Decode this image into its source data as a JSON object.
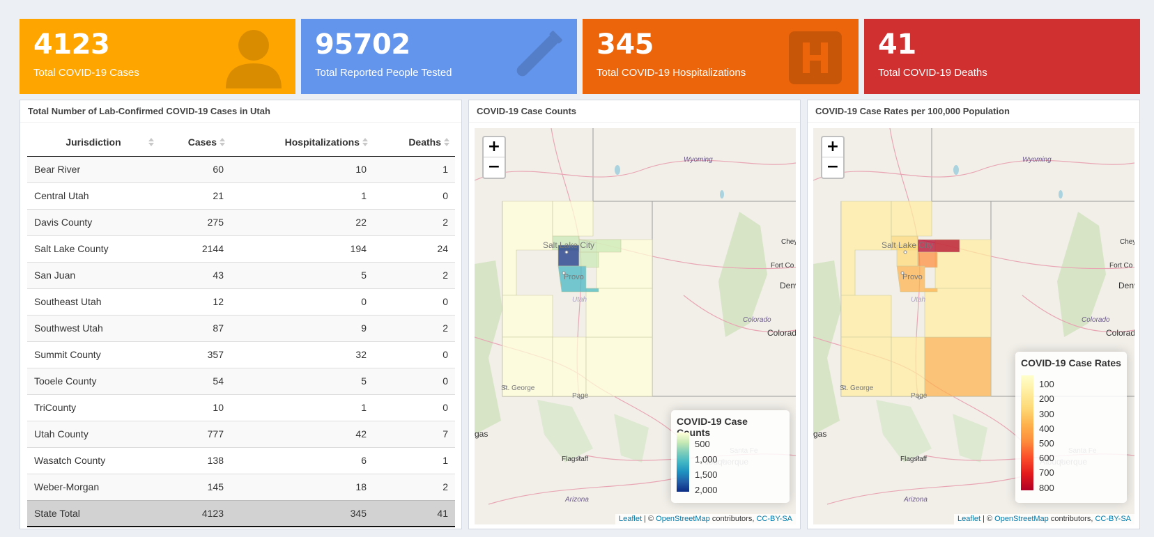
{
  "value_boxes": {
    "cases": {
      "value": "4123",
      "caption": "Total COVID-19 Cases",
      "icon": "user-icon",
      "color": "#ffa500"
    },
    "tested": {
      "value": "95702",
      "caption": "Total Reported People Tested",
      "icon": "vial-icon",
      "color": "#6495ed"
    },
    "hosp": {
      "value": "345",
      "caption": "Total COVID-19 Hospitalizations",
      "icon": "hospital-icon",
      "color": "#ec650a"
    },
    "deaths": {
      "value": "41",
      "caption": "Total COVID-19 Deaths",
      "color": "#d0302f"
    }
  },
  "table_panel": {
    "title": "Total Number of Lab-Confirmed COVID-19 Cases in Utah",
    "columns": [
      "Jurisdiction",
      "Cases",
      "Hospitalizations",
      "Deaths"
    ],
    "rows": [
      [
        "Bear River",
        "60",
        "10",
        "1"
      ],
      [
        "Central Utah",
        "21",
        "1",
        "0"
      ],
      [
        "Davis County",
        "275",
        "22",
        "2"
      ],
      [
        "Salt Lake County",
        "2144",
        "194",
        "24"
      ],
      [
        "San Juan",
        "43",
        "5",
        "2"
      ],
      [
        "Southeast Utah",
        "12",
        "0",
        "0"
      ],
      [
        "Southwest Utah",
        "87",
        "9",
        "2"
      ],
      [
        "Summit County",
        "357",
        "32",
        "0"
      ],
      [
        "Tooele County",
        "54",
        "5",
        "0"
      ],
      [
        "TriCounty",
        "10",
        "1",
        "0"
      ],
      [
        "Utah County",
        "777",
        "42",
        "7"
      ],
      [
        "Wasatch County",
        "138",
        "6",
        "1"
      ],
      [
        "Weber-Morgan",
        "145",
        "18",
        "2"
      ]
    ],
    "total": [
      "State Total",
      "4123",
      "345",
      "41"
    ]
  },
  "map_counts": {
    "title": "COVID-19 Case Counts",
    "legend_title": "COVID-19 Case Counts",
    "legend_ticks": [
      "500",
      "1,000",
      "1,500",
      "2,000"
    ],
    "colors": [
      "#ffffd9",
      "#c7e9b4",
      "#7fcdbb",
      "#41b6c4",
      "#1d91c0",
      "#225ea8",
      "#0c2c84"
    ]
  },
  "map_rates": {
    "title": "COVID-19 Case Rates per 100,000 Population",
    "legend_title": "COVID-19 Case Rates",
    "legend_ticks": [
      "100",
      "200",
      "300",
      "400",
      "500",
      "600",
      "700",
      "800"
    ],
    "colors": [
      "#ffffcc",
      "#ffeda0",
      "#fed976",
      "#feb24c",
      "#fd8d3c",
      "#fc4e2a",
      "#e31a1c",
      "#b10026"
    ]
  },
  "map_labels": {
    "wyoming": "Wyoming",
    "colorado": "Colorado",
    "utah": "Utah",
    "slc": "Salt Lake City",
    "provo": "Provo",
    "st_george": "St. George",
    "page": "Page",
    "flagstaff": "Flagstaff",
    "arizona": "Arizona",
    "albuquerque": "Albuquerque",
    "santa_fe": "Santa Fe",
    "vegas": "gas",
    "denver": "Denv",
    "colorado_springs": "Colorad",
    "fort_collins": "Fort Co",
    "cheyenne": "Chey"
  },
  "zoom": {
    "plus": "+",
    "minus": "−"
  },
  "attribution": {
    "leaflet": "Leaflet",
    "sep": " | © ",
    "osm": "OpenStreetMap",
    "contrib": " contributors, ",
    "license": "CC-BY-SA"
  }
}
